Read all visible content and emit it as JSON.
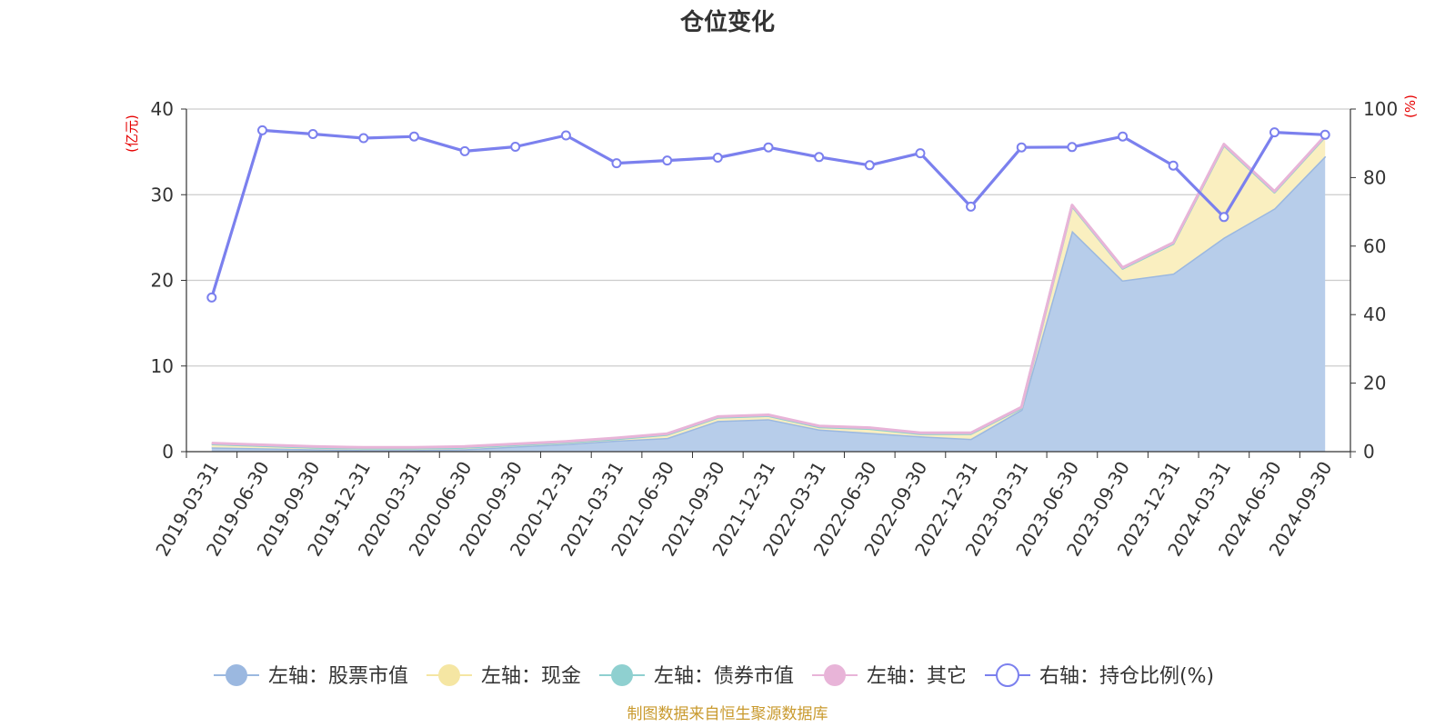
{
  "chart_data": {
    "type": "area",
    "title": "仓位变化",
    "left_axis_unit": "(亿元)",
    "right_axis_unit": "(%)",
    "left_ylim": [
      0,
      40
    ],
    "left_ticks": [
      "0",
      "10",
      "20",
      "30",
      "40"
    ],
    "right_ylim": [
      0,
      100
    ],
    "right_ticks": [
      "0",
      "20",
      "40",
      "60",
      "80",
      "100"
    ],
    "grid": true,
    "legend_position": "bottom",
    "categories": [
      "2019-03-31",
      "2019-06-30",
      "2019-09-30",
      "2019-12-31",
      "2020-03-31",
      "2020-06-30",
      "2020-09-30",
      "2020-12-31",
      "2021-03-31",
      "2021-06-30",
      "2021-09-30",
      "2021-12-31",
      "2022-03-31",
      "2022-06-30",
      "2022-09-30",
      "2022-12-31",
      "2023-03-31",
      "2023-06-30",
      "2023-09-30",
      "2023-12-31",
      "2024-03-31",
      "2024-06-30",
      "2024-09-30"
    ],
    "series": [
      {
        "name": "左轴：股票市值",
        "axis": "left",
        "kind": "stacked-area",
        "color": "#9bb8e0",
        "fill": "#b7cdea",
        "values": [
          0.5,
          0.4,
          0.3,
          0.2,
          0.2,
          0.3,
          0.6,
          0.9,
          1.3,
          1.6,
          3.6,
          3.8,
          2.6,
          2.2,
          1.8,
          1.5,
          4.9,
          25.8,
          20.0,
          20.8,
          25.0,
          28.4,
          34.5
        ]
      },
      {
        "name": "左轴：现金",
        "axis": "left",
        "kind": "stacked-area",
        "color": "#f5e6a3",
        "fill": "#faefc0",
        "values": [
          0.4,
          0.3,
          0.2,
          0.2,
          0.2,
          0.2,
          0.2,
          0.2,
          0.2,
          0.4,
          0.4,
          0.4,
          0.3,
          0.5,
          0.3,
          0.6,
          0.2,
          2.9,
          1.4,
          3.5,
          10.8,
          1.9,
          2.3
        ]
      },
      {
        "name": "左轴：债券市值",
        "axis": "left",
        "kind": "stacked-area",
        "color": "#8fd0d0",
        "fill": "#a9dede",
        "values": [
          0,
          0,
          0,
          0,
          0,
          0,
          0,
          0,
          0,
          0,
          0,
          0,
          0,
          0,
          0,
          0,
          0,
          0,
          0,
          0,
          0,
          0,
          0
        ]
      },
      {
        "name": "左轴：其它",
        "axis": "left",
        "kind": "stacked-area",
        "color": "#e8b4d8",
        "fill": "#f0cce4",
        "values": [
          0.1,
          0.1,
          0.1,
          0.1,
          0.1,
          0.1,
          0.1,
          0.1,
          0.1,
          0.1,
          0.1,
          0.1,
          0.1,
          0.1,
          0.1,
          0.1,
          0.1,
          0.1,
          0.1,
          0.1,
          0.1,
          0.1,
          0.1
        ]
      },
      {
        "name": "右轴：持仓比例(%)",
        "axis": "right",
        "kind": "line",
        "color": "#7b80ee",
        "values": [
          45.0,
          93.8,
          92.7,
          91.5,
          92.0,
          87.7,
          89.0,
          92.3,
          84.2,
          85.0,
          85.8,
          88.8,
          86.0,
          83.6,
          87.1,
          71.5,
          88.8,
          88.9,
          92.0,
          83.5,
          68.5,
          93.2,
          92.5
        ]
      }
    ]
  },
  "footer": {
    "source": "制图数据来自恒生聚源数据库"
  }
}
